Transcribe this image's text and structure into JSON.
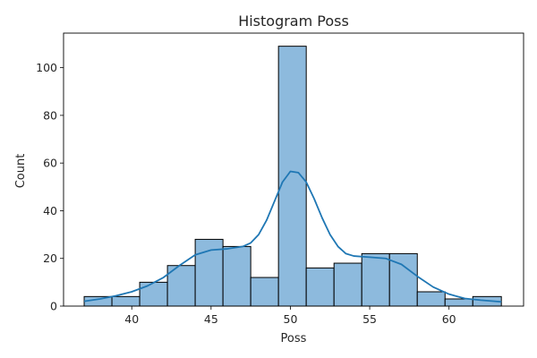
{
  "chart_data": {
    "type": "bar",
    "title": "Histogram Poss",
    "xlabel": "Poss",
    "ylabel": "Count",
    "xlim": [
      35.7,
      64.7
    ],
    "ylim": [
      0,
      114.5
    ],
    "xticks": [
      40,
      45,
      50,
      55,
      60
    ],
    "yticks": [
      0,
      20,
      40,
      60,
      80,
      100
    ],
    "bin_edges": [
      37.0,
      38.75,
      40.5,
      42.25,
      44.0,
      45.75,
      47.5,
      49.25,
      51.0,
      52.75,
      54.5,
      56.25,
      58.0,
      59.75,
      61.5,
      63.3
    ],
    "counts": [
      4,
      4,
      10,
      17,
      28,
      25,
      12,
      109,
      16,
      18,
      22,
      22,
      6,
      3,
      4
    ],
    "kde": {
      "x": [
        37,
        38,
        39,
        40,
        41,
        42,
        43,
        44,
        45,
        46,
        47,
        47.5,
        48,
        48.5,
        49,
        49.5,
        50,
        50.5,
        51,
        51.5,
        52,
        52.5,
        53,
        53.5,
        54,
        55,
        56,
        57,
        58,
        59,
        60,
        61,
        62,
        63.3
      ],
      "y": [
        2,
        3,
        4.3,
        6,
        8.5,
        12,
        17,
        21.5,
        23.5,
        24,
        25,
        26.5,
        30,
        36,
        44,
        52,
        56.5,
        56,
        52,
        45,
        37,
        30,
        25,
        22,
        21,
        20.5,
        20,
        17.5,
        12.5,
        8,
        5,
        3.2,
        2.5,
        1.8
      ]
    },
    "colors": {
      "bar_fill": "#8dbadd",
      "bar_edge": "#000000",
      "kde_line": "#1f77b4"
    },
    "grid": false
  }
}
